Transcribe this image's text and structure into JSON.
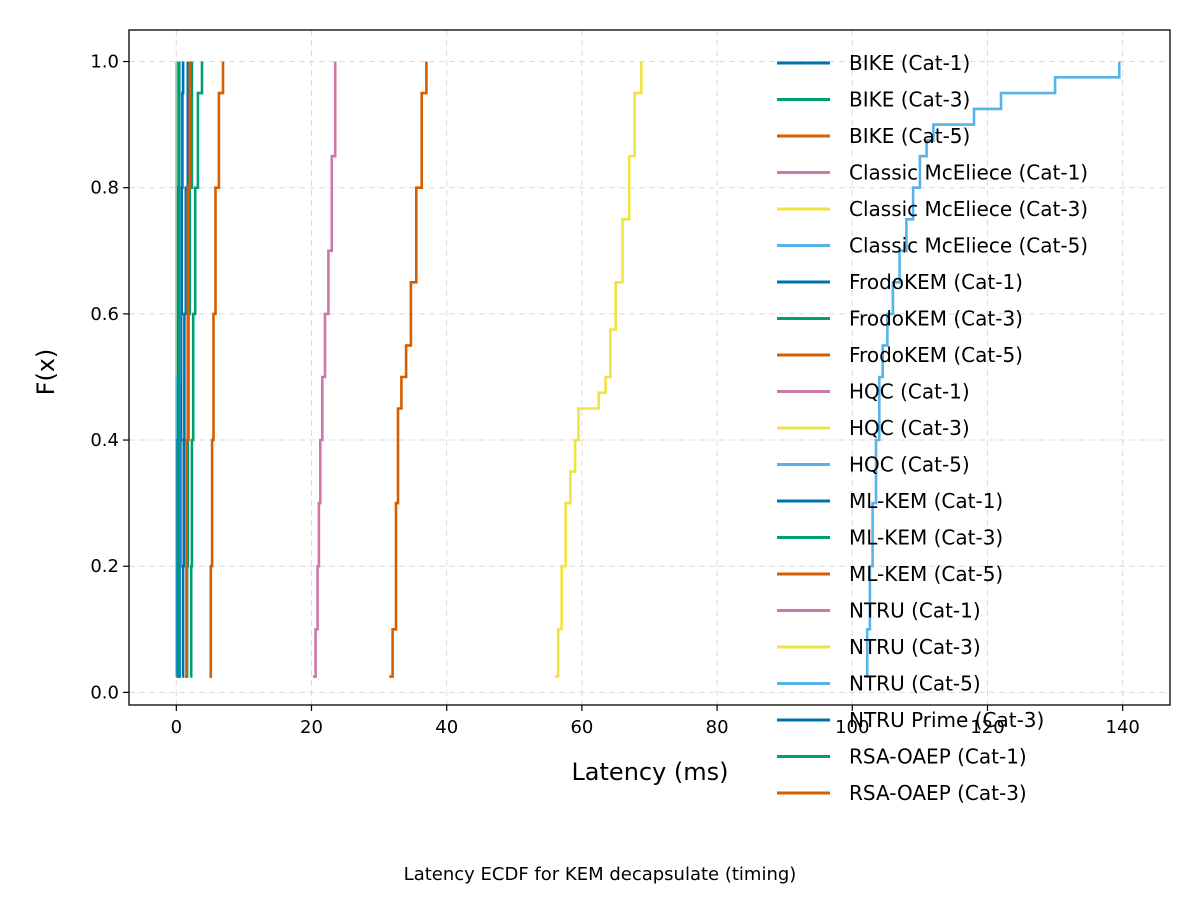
{
  "caption": "Latency ECDF for KEM decapsulate (timing)",
  "chart_data": {
    "type": "line",
    "step": true,
    "xlabel": "Latency (ms)",
    "ylabel": "F(x)",
    "xlim": [
      -7,
      147
    ],
    "ylim": [
      -0.02,
      1.05
    ],
    "xticks": [
      0,
      20,
      40,
      60,
      80,
      100,
      120,
      140
    ],
    "yticks": [
      0.0,
      0.2,
      0.4,
      0.6,
      0.8,
      1.0
    ],
    "xtick_labels": [
      "0",
      "20",
      "40",
      "60",
      "80",
      "100",
      "120",
      "140"
    ],
    "ytick_labels": [
      "0.0",
      "0.2",
      "0.4",
      "0.6",
      "0.8",
      "1.0"
    ],
    "grid": true,
    "legend_position": "top-right",
    "series": [
      {
        "name": "BIKE (Cat-1)",
        "color": "#0072B2",
        "x": [
          0.4,
          0.5,
          0.6,
          0.7,
          0.8,
          0.9,
          1.0
        ],
        "y": [
          0.025,
          0.2,
          0.4,
          0.6,
          0.8,
          0.95,
          1.0
        ]
      },
      {
        "name": "BIKE (Cat-3)",
        "color": "#009E73",
        "x": [
          1.5,
          1.6,
          1.7,
          1.8,
          2.0,
          2.3
        ],
        "y": [
          0.025,
          0.2,
          0.4,
          0.6,
          0.8,
          1.0
        ]
      },
      {
        "name": "BIKE (Cat-5)",
        "color": "#D55E00",
        "x": [
          4.9,
          5.1,
          5.3,
          5.5,
          5.8,
          6.3,
          6.9
        ],
        "y": [
          0.025,
          0.2,
          0.4,
          0.6,
          0.8,
          0.95,
          1.0
        ]
      },
      {
        "name": "Classic McEliece (Cat-1)",
        "color": "#CC79A7",
        "x": [
          20.2,
          20.6,
          20.9,
          21.1,
          21.3,
          21.6,
          22.0,
          22.5,
          23.0,
          23.5
        ],
        "y": [
          0.025,
          0.1,
          0.2,
          0.3,
          0.4,
          0.5,
          0.6,
          0.7,
          0.85,
          1.0
        ]
      },
      {
        "name": "Classic McEliece (Cat-3)",
        "color": "#F0E442",
        "x": [
          56.0,
          56.5,
          57.0,
          57.6,
          58.3,
          59.0,
          59.5,
          62.5,
          63.5,
          64.2,
          65.0,
          66.0,
          67.0,
          67.8,
          68.8
        ],
        "y": [
          0.025,
          0.1,
          0.2,
          0.3,
          0.35,
          0.4,
          0.45,
          0.475,
          0.5,
          0.575,
          0.65,
          0.75,
          0.85,
          0.95,
          1.0
        ]
      },
      {
        "name": "Classic McEliece (Cat-5)",
        "color": "#56B4E9",
        "x": [
          101.8,
          102.2,
          102.6,
          103.0,
          103.5,
          104.0,
          104.5,
          105.2,
          106.0,
          107.0,
          108.0,
          109.0,
          110.0,
          111.0,
          112.0,
          118.0,
          122.0,
          130.0,
          139.5
        ],
        "y": [
          0.025,
          0.1,
          0.2,
          0.3,
          0.4,
          0.5,
          0.55,
          0.6,
          0.65,
          0.7,
          0.75,
          0.8,
          0.85,
          0.875,
          0.9,
          0.925,
          0.95,
          0.975,
          1.0
        ]
      },
      {
        "name": "FrodoKEM (Cat-1)",
        "color": "#0072B2",
        "x": [
          0.9,
          1.0,
          1.1,
          1.2,
          1.4,
          1.7
        ],
        "y": [
          0.025,
          0.2,
          0.4,
          0.6,
          0.8,
          1.0
        ]
      },
      {
        "name": "FrodoKEM (Cat-3)",
        "color": "#009E73",
        "x": [
          2.1,
          2.2,
          2.3,
          2.5,
          2.8,
          3.2,
          3.8
        ],
        "y": [
          0.025,
          0.2,
          0.4,
          0.6,
          0.8,
          0.95,
          1.0
        ]
      },
      {
        "name": "FrodoKEM (Cat-5)",
        "color": "#D55E00",
        "x": [
          31.5,
          32.0,
          32.5,
          32.8,
          33.3,
          34.0,
          34.7,
          35.5,
          36.3,
          37.0
        ],
        "y": [
          0.025,
          0.1,
          0.3,
          0.45,
          0.5,
          0.55,
          0.65,
          0.8,
          0.95,
          1.0
        ]
      },
      {
        "name": "HQC (Cat-1)",
        "color": "#CC79A7",
        "x": [
          0.0,
          0.05,
          0.1
        ],
        "y": [
          0.025,
          0.5,
          1.0
        ]
      },
      {
        "name": "HQC (Cat-3)",
        "color": "#F0E442",
        "x": [
          0.2,
          0.25,
          0.3
        ],
        "y": [
          0.025,
          0.5,
          1.0
        ]
      },
      {
        "name": "HQC (Cat-5)",
        "color": "#56B4E9",
        "x": [
          0.35,
          0.4,
          0.45
        ],
        "y": [
          0.025,
          0.5,
          1.0
        ]
      },
      {
        "name": "ML-KEM (Cat-1)",
        "color": "#0072B2",
        "x": [
          0.0,
          0.05,
          0.1
        ],
        "y": [
          0.025,
          0.5,
          1.0
        ]
      },
      {
        "name": "ML-KEM (Cat-3)",
        "color": "#009E73",
        "x": [
          0.1,
          0.15,
          0.2
        ],
        "y": [
          0.025,
          0.5,
          1.0
        ]
      },
      {
        "name": "ML-KEM (Cat-5)",
        "color": "#D55E00",
        "x": [
          0.15,
          0.2,
          0.25
        ],
        "y": [
          0.025,
          0.5,
          1.0
        ]
      },
      {
        "name": "NTRU (Cat-1)",
        "color": "#CC79A7",
        "x": [
          0.0,
          0.05,
          0.1
        ],
        "y": [
          0.025,
          0.5,
          1.0
        ]
      },
      {
        "name": "NTRU (Cat-3)",
        "color": "#F0E442",
        "x": [
          0.05,
          0.1,
          0.15
        ],
        "y": [
          0.025,
          0.5,
          1.0
        ]
      },
      {
        "name": "NTRU (Cat-5)",
        "color": "#56B4E9",
        "x": [
          0.1,
          0.15,
          0.2
        ],
        "y": [
          0.025,
          0.5,
          1.0
        ]
      },
      {
        "name": "NTRU Prime (Cat-3)",
        "color": "#0072B2",
        "x": [
          0.1,
          0.2,
          0.3,
          0.4
        ],
        "y": [
          0.025,
          0.4,
          0.8,
          1.0
        ]
      },
      {
        "name": "RSA-OAEP (Cat-1)",
        "color": "#009E73",
        "x": [
          0.3,
          0.35,
          0.4
        ],
        "y": [
          0.025,
          0.5,
          1.0
        ]
      },
      {
        "name": "RSA-OAEP (Cat-3)",
        "color": "#D55E00",
        "x": [
          1.3,
          1.5,
          1.7,
          2.0
        ],
        "y": [
          0.025,
          0.4,
          0.8,
          1.0
        ]
      }
    ]
  }
}
